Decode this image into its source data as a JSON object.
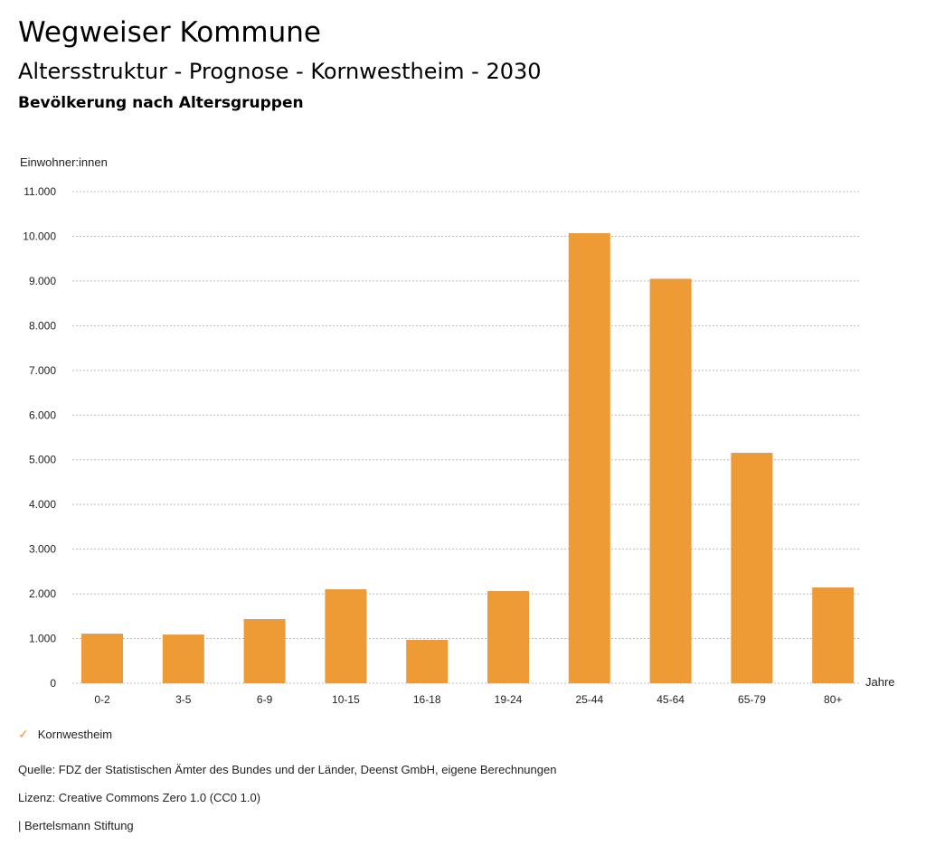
{
  "header": {
    "title": "Wegweiser Kommune",
    "subtitle": "Altersstruktur - Prognose - Kornwestheim - 2030",
    "section": "Bevölkerung nach Altersgruppen"
  },
  "chart_data": {
    "type": "bar",
    "ylabel": "Einwohner:innen",
    "xlabel": "Jahre",
    "categories": [
      "0-2",
      "3-5",
      "6-9",
      "10-15",
      "16-18",
      "19-24",
      "25-44",
      "45-64",
      "65-79",
      "80+"
    ],
    "series": [
      {
        "name": "Kornwestheim",
        "color": "#EE9A35",
        "values": [
          1110,
          1090,
          1436,
          2103,
          971,
          2063,
          10070,
          9050,
          5157,
          2144
        ]
      }
    ],
    "ylim": [
      0,
      11000
    ],
    "yticks": [
      0,
      1000,
      2000,
      3000,
      4000,
      5000,
      6000,
      7000,
      8000,
      9000,
      10000,
      11000
    ],
    "ytick_labels": [
      "0",
      "1.000",
      "2.000",
      "3.000",
      "4.000",
      "5.000",
      "6.000",
      "7.000",
      "8.000",
      "9.000",
      "10.000",
      "11.000"
    ],
    "grid": true,
    "legend": "bottom-left"
  },
  "footer": {
    "source": "Quelle: FDZ der Statistischen Ämter des Bundes und der Länder, Deenst GmbH, eigene Berechnungen",
    "license": "Lizenz: Creative Commons Zero 1.0 (CC0 1.0)",
    "credit": "| Bertelsmann Stiftung"
  }
}
